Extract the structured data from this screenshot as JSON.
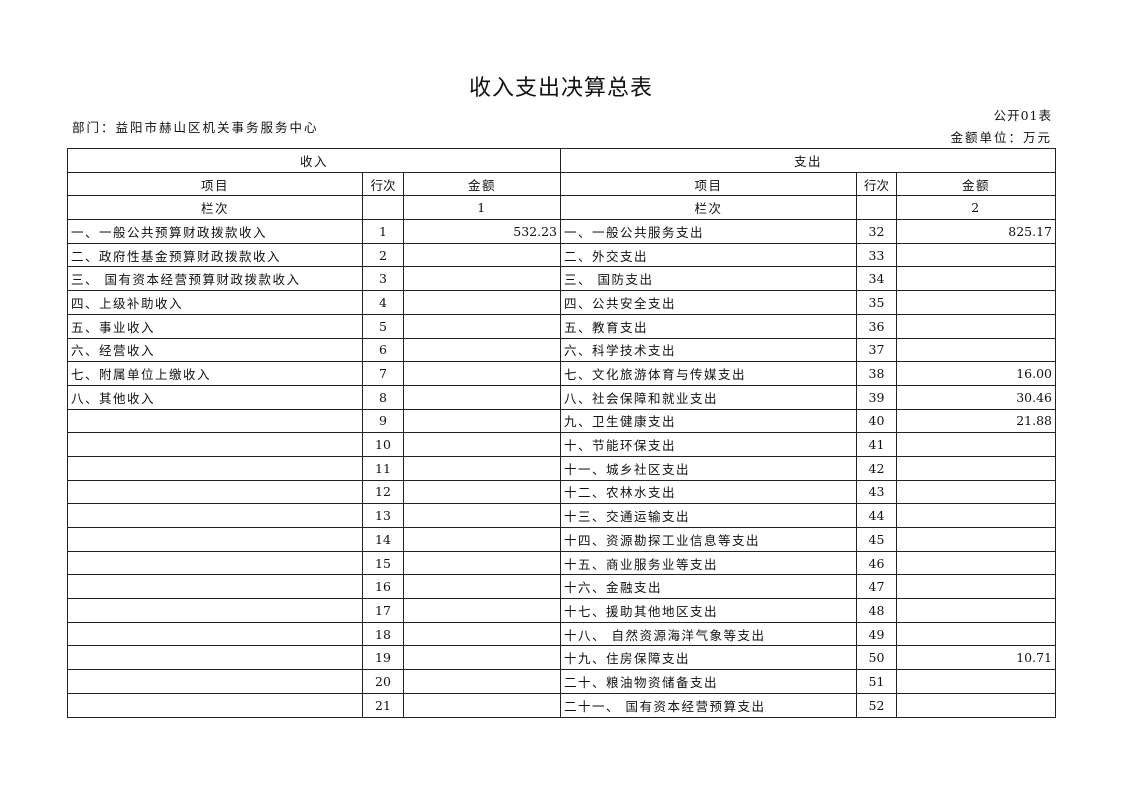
{
  "title": "收入支出决算总表",
  "department": "部门：益阳市赫山区机关事务服务中心",
  "table_no": "公开01表",
  "unit": "金额单位：万元",
  "headers": {
    "income": "收入",
    "expense": "支出",
    "item": "项目",
    "line": "行次",
    "amount": "金额",
    "column": "栏次",
    "col1": "1",
    "col2": "2"
  },
  "rows": [
    {
      "in_item": "一、一般公共预算财政拨款收入",
      "in_line": "1",
      "in_amt": "532.23",
      "ex_item": "一、一般公共服务支出",
      "ex_line": "32",
      "ex_amt": "825.17"
    },
    {
      "in_item": "二、政府性基金预算财政拨款收入",
      "in_line": "2",
      "in_amt": "",
      "ex_item": "二、外交支出",
      "ex_line": "33",
      "ex_amt": ""
    },
    {
      "in_item": "三、 国有资本经营预算财政拨款收入",
      "in_line": "3",
      "in_amt": "",
      "ex_item": "三、 国防支出",
      "ex_line": "34",
      "ex_amt": ""
    },
    {
      "in_item": "四、上级补助收入",
      "in_line": "4",
      "in_amt": "",
      "ex_item": "四、公共安全支出",
      "ex_line": "35",
      "ex_amt": ""
    },
    {
      "in_item": "五、事业收入",
      "in_line": "5",
      "in_amt": "",
      "ex_item": "五、教育支出",
      "ex_line": "36",
      "ex_amt": ""
    },
    {
      "in_item": "六、经营收入",
      "in_line": "6",
      "in_amt": "",
      "ex_item": "六、科学技术支出",
      "ex_line": "37",
      "ex_amt": ""
    },
    {
      "in_item": "七、附属单位上缴收入",
      "in_line": "7",
      "in_amt": "",
      "ex_item": "七、文化旅游体育与传媒支出",
      "ex_line": "38",
      "ex_amt": "16.00"
    },
    {
      "in_item": "八、其他收入",
      "in_line": "8",
      "in_amt": "",
      "ex_item": "八、社会保障和就业支出",
      "ex_line": "39",
      "ex_amt": "30.46"
    },
    {
      "in_item": "",
      "in_line": "9",
      "in_amt": "",
      "ex_item": "九、卫生健康支出",
      "ex_line": "40",
      "ex_amt": "21.88"
    },
    {
      "in_item": "",
      "in_line": "10",
      "in_amt": "",
      "ex_item": "十、节能环保支出",
      "ex_line": "41",
      "ex_amt": ""
    },
    {
      "in_item": "",
      "in_line": "11",
      "in_amt": "",
      "ex_item": "十一、城乡社区支出",
      "ex_line": "42",
      "ex_amt": ""
    },
    {
      "in_item": "",
      "in_line": "12",
      "in_amt": "",
      "ex_item": "十二、农林水支出",
      "ex_line": "43",
      "ex_amt": ""
    },
    {
      "in_item": "",
      "in_line": "13",
      "in_amt": "",
      "ex_item": "十三、交通运输支出",
      "ex_line": "44",
      "ex_amt": ""
    },
    {
      "in_item": "",
      "in_line": "14",
      "in_amt": "",
      "ex_item": "十四、资源勘探工业信息等支出",
      "ex_line": "45",
      "ex_amt": ""
    },
    {
      "in_item": "",
      "in_line": "15",
      "in_amt": "",
      "ex_item": "十五、商业服务业等支出",
      "ex_line": "46",
      "ex_amt": ""
    },
    {
      "in_item": "",
      "in_line": "16",
      "in_amt": "",
      "ex_item": "十六、金融支出",
      "ex_line": "47",
      "ex_amt": ""
    },
    {
      "in_item": "",
      "in_line": "17",
      "in_amt": "",
      "ex_item": "十七、援助其他地区支出",
      "ex_line": "48",
      "ex_amt": ""
    },
    {
      "in_item": "",
      "in_line": "18",
      "in_amt": "",
      "ex_item": "十八、 自然资源海洋气象等支出",
      "ex_line": "49",
      "ex_amt": ""
    },
    {
      "in_item": "",
      "in_line": "19",
      "in_amt": "",
      "ex_item": "十九、住房保障支出",
      "ex_line": "50",
      "ex_amt": "10.71"
    },
    {
      "in_item": "",
      "in_line": "20",
      "in_amt": "",
      "ex_item": "二十、粮油物资储备支出",
      "ex_line": "51",
      "ex_amt": ""
    },
    {
      "in_item": "",
      "in_line": "21",
      "in_amt": "",
      "ex_item": "二十一、 国有资本经营预算支出",
      "ex_line": "52",
      "ex_amt": ""
    }
  ]
}
